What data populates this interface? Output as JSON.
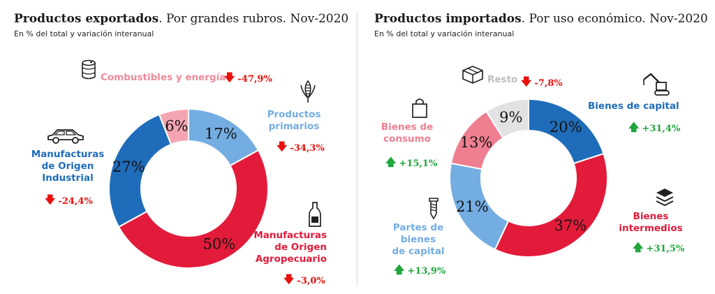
{
  "colors": {
    "red": "#e31b3b",
    "dark_blue": "#1f6dba",
    "light_blue": "#74ade2",
    "pink": "#ef7f90",
    "gray": "#e2e2e2",
    "up": "#1fa53c",
    "down": "#e8100d"
  },
  "chart_data": [
    {
      "type": "pie",
      "donut": true,
      "title_bold": "Productos exportados",
      "title_rest": ". Por grandes rubros. Nov-2020",
      "subtitle": "En % del total y variación interanual",
      "slices": [
        {
          "label_lines": [
            "Productos",
            "primarios"
          ],
          "value": 17,
          "value_label": "17%",
          "change": "-34,3%",
          "direction": "down",
          "color": "#74ade2",
          "icon": "corn-icon"
        },
        {
          "label_lines": [
            "Manufacturas",
            "de Origen",
            "Agropecuario"
          ],
          "value": 50,
          "value_label": "50%",
          "change": "-3,0%",
          "direction": "down",
          "color": "#e31b3b",
          "icon": "bottle-icon"
        },
        {
          "label_lines": [
            "Manufacturas",
            "de Origen",
            "Industrial"
          ],
          "value": 27,
          "value_label": "27%",
          "change": "-24,4%",
          "direction": "down",
          "color": "#1f6dba",
          "icon": "car-icon"
        },
        {
          "label_lines": [
            "Combustibles y energía"
          ],
          "value": 6,
          "value_label": "6%",
          "change": "-47,9%",
          "direction": "down",
          "color": "#f5a5b1",
          "icon": "oil-barrel-icon"
        }
      ]
    },
    {
      "type": "pie",
      "donut": true,
      "title_bold": "Productos importados",
      "title_rest": ". Por uso económico. Nov-2020",
      "subtitle": "En % del total y variación interanual",
      "slices": [
        {
          "label_lines": [
            "Bienes de capital"
          ],
          "value": 20,
          "value_label": "20%",
          "change": "+31,4%",
          "direction": "up",
          "color": "#1f6dba",
          "icon": "crane-icon"
        },
        {
          "label_lines": [
            "Bienes",
            "intermedios"
          ],
          "value": 37,
          "value_label": "37%",
          "change": "+31,5%",
          "direction": "up",
          "color": "#e31b3b",
          "icon": "layers-icon"
        },
        {
          "label_lines": [
            "Partes de",
            "bienes",
            "de capital"
          ],
          "value": 21,
          "value_label": "21%",
          "change": "+13,9%",
          "direction": "up",
          "color": "#74ade2",
          "icon": "screw-icon"
        },
        {
          "label_lines": [
            "Bienes de",
            "consumo"
          ],
          "value": 13,
          "value_label": "13%",
          "change": "+15,1%",
          "direction": "up",
          "color": "#ef7f90",
          "icon": "shopping-bag-icon"
        },
        {
          "label_lines": [
            "Resto"
          ],
          "value": 9,
          "value_label": "9%",
          "change": "-7,8%",
          "direction": "down",
          "color": "#e2e2e2",
          "icon": "box-icon"
        }
      ]
    }
  ]
}
